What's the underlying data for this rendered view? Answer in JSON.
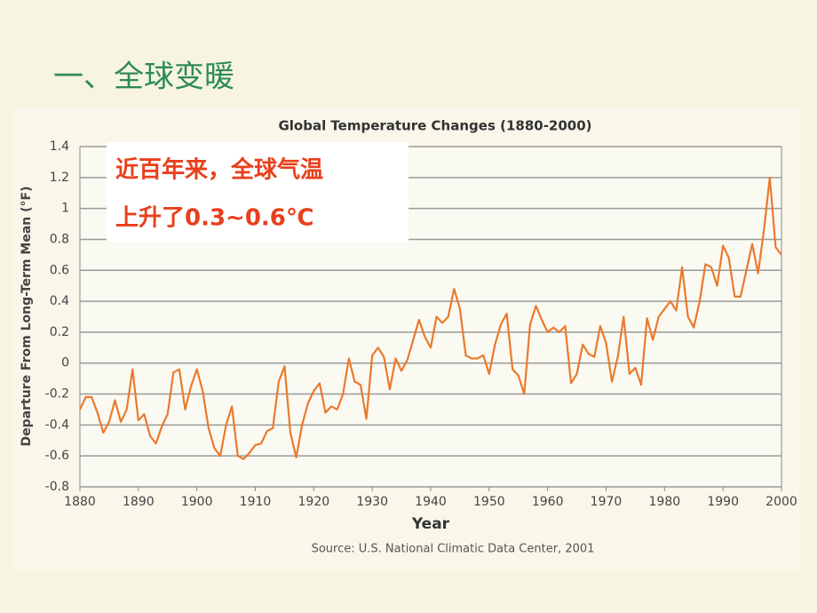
{
  "heading": "一、全球变暖",
  "chart_data": {
    "type": "line",
    "title": "Global Temperature Changes (1880-2000)",
    "xlabel": "Year",
    "ylabel": "Departure From Long-Term Mean (°F)",
    "source": "Source: U.S. National Climatic Data Center, 2001",
    "annotations": [
      "近百年来，全球气温",
      "上升了0.3~0.6℃"
    ],
    "xlim": [
      1880,
      2000
    ],
    "xticks": [
      1880,
      1890,
      1900,
      1910,
      1920,
      1930,
      1940,
      1950,
      1960,
      1970,
      1980,
      1990,
      2000
    ],
    "ylim": [
      -0.8,
      1.4
    ],
    "yticks": [
      -0.8,
      -0.6,
      -0.4,
      -0.2,
      0,
      0.2,
      0.4,
      0.6,
      0.8,
      1,
      1.2,
      1.4
    ],
    "grid": true,
    "x": [
      1880,
      1881,
      1882,
      1883,
      1884,
      1885,
      1886,
      1887,
      1888,
      1889,
      1890,
      1891,
      1892,
      1893,
      1894,
      1895,
      1896,
      1897,
      1898,
      1899,
      1900,
      1901,
      1902,
      1903,
      1904,
      1905,
      1906,
      1907,
      1908,
      1909,
      1910,
      1911,
      1912,
      1913,
      1914,
      1915,
      1916,
      1917,
      1918,
      1919,
      1920,
      1921,
      1922,
      1923,
      1924,
      1925,
      1926,
      1927,
      1928,
      1929,
      1930,
      1931,
      1932,
      1933,
      1934,
      1935,
      1936,
      1937,
      1938,
      1939,
      1940,
      1941,
      1942,
      1943,
      1944,
      1945,
      1946,
      1947,
      1948,
      1949,
      1950,
      1951,
      1952,
      1953,
      1954,
      1955,
      1956,
      1957,
      1958,
      1959,
      1960,
      1961,
      1962,
      1963,
      1964,
      1965,
      1966,
      1967,
      1968,
      1969,
      1970,
      1971,
      1972,
      1973,
      1974,
      1975,
      1976,
      1977,
      1978,
      1979,
      1980,
      1981,
      1982,
      1983,
      1984,
      1985,
      1986,
      1987,
      1988,
      1989,
      1990,
      1991,
      1992,
      1993,
      1994,
      1995,
      1996,
      1997,
      1998,
      1999,
      2000
    ],
    "series": [
      {
        "color": "#ea7a2c",
        "values": [
          -0.3,
          -0.22,
          -0.22,
          -0.32,
          -0.45,
          -0.38,
          -0.24,
          -0.38,
          -0.3,
          -0.04,
          -0.37,
          -0.33,
          -0.47,
          -0.52,
          -0.41,
          -0.33,
          -0.06,
          -0.04,
          -0.3,
          -0.15,
          -0.04,
          -0.18,
          -0.42,
          -0.55,
          -0.6,
          -0.4,
          -0.28,
          -0.6,
          -0.62,
          -0.58,
          -0.53,
          -0.52,
          -0.44,
          -0.42,
          -0.12,
          -0.02,
          -0.45,
          -0.61,
          -0.4,
          -0.26,
          -0.18,
          -0.13,
          -0.32,
          -0.28,
          -0.3,
          -0.2,
          0.03,
          -0.12,
          -0.14,
          -0.36,
          0.05,
          0.1,
          0.04,
          -0.17,
          0.03,
          -0.05,
          0.02,
          0.15,
          0.28,
          0.17,
          0.1,
          0.3,
          0.26,
          0.3,
          0.48,
          0.35,
          0.05,
          0.03,
          0.03,
          0.05,
          -0.07,
          0.12,
          0.25,
          0.32,
          -0.04,
          -0.08,
          -0.2,
          0.25,
          0.37,
          0.28,
          0.2,
          0.23,
          0.2,
          0.24,
          -0.13,
          -0.07,
          0.12,
          0.06,
          0.04,
          0.24,
          0.13,
          -0.12,
          0.04,
          0.3,
          -0.07,
          -0.03,
          -0.14,
          0.29,
          0.15,
          0.3,
          0.35,
          0.4,
          0.34,
          0.62,
          0.3,
          0.23,
          0.4,
          0.64,
          0.62,
          0.5,
          0.76,
          0.68,
          0.43,
          0.43,
          0.6,
          0.77,
          0.58,
          0.86,
          1.2,
          0.75,
          0.7
        ]
      }
    ]
  }
}
